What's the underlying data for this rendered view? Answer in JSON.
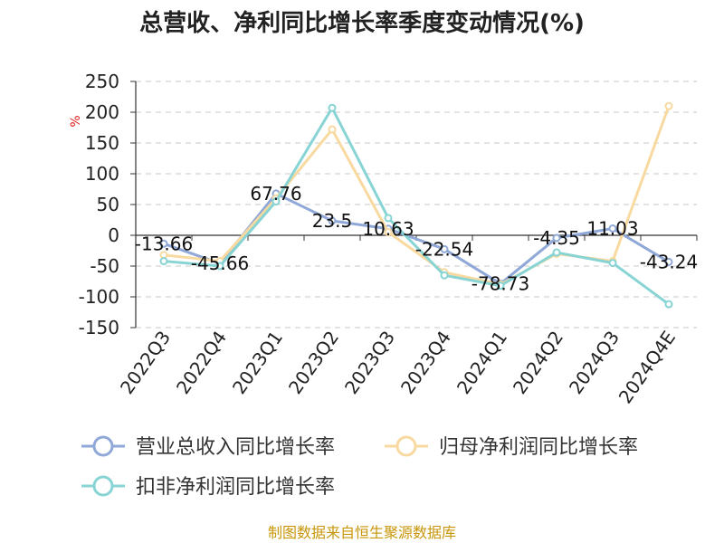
{
  "chart_data": {
    "type": "line",
    "title": "总营收、净利同比增长率季度变动情况(%)",
    "ylabel": "%",
    "xlabel": "",
    "ylim": [
      -150,
      250
    ],
    "yticks": [
      250,
      200,
      150,
      100,
      50,
      0,
      -50,
      -100,
      -150
    ],
    "grid": true,
    "legend_position": "bottom-left",
    "categories": [
      "2022Q3",
      "2022Q4",
      "2023Q1",
      "2023Q2",
      "2023Q3",
      "2023Q4",
      "2024Q1",
      "2024Q2",
      "2024Q3",
      "2024Q4E"
    ],
    "series": [
      {
        "name": "营业总收入同比增长率",
        "color": "#8fa8d8",
        "values": [
          -13.66,
          -45.66,
          67.76,
          23.5,
          10.63,
          -22.54,
          -78.73,
          -4.35,
          11.03,
          -43.24
        ],
        "labels": [
          "-13.66",
          "-45.66",
          "67.76",
          "23.5",
          "10.63",
          "-22.54",
          "-78.73",
          "-4.35",
          "11.03",
          "-43.24"
        ]
      },
      {
        "name": "归母净利润同比增长率",
        "color": "#f8d9a0",
        "values": [
          -32,
          -42,
          60,
          172,
          5,
          -60,
          -80,
          -30,
          -42,
          210
        ]
      },
      {
        "name": "扣非净利润同比增长率",
        "color": "#88d4d4",
        "values": [
          -42,
          -50,
          55,
          207,
          28,
          -65,
          -82,
          -28,
          -45,
          -112
        ]
      }
    ],
    "source": "制图数据来自恒生聚源数据库"
  }
}
